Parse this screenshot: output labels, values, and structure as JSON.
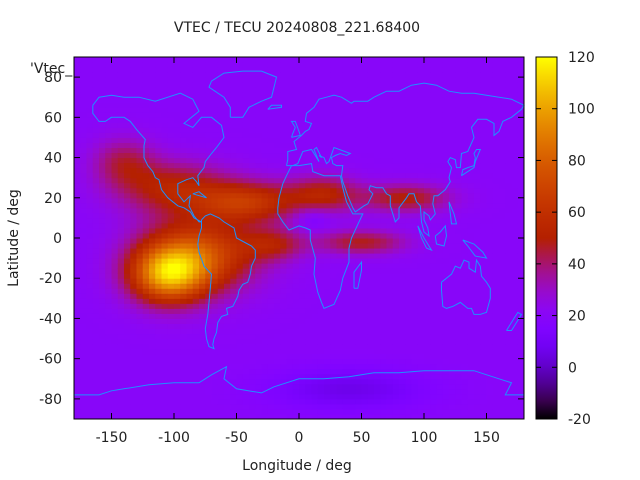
{
  "chart_data": {
    "type": "heatmap",
    "title": "VTEC / TECU 20240808_221.68400",
    "xlabel": "Longitude / deg",
    "ylabel": "Latitude / deg",
    "xlim": [
      -180,
      180
    ],
    "ylim": [
      -90,
      90
    ],
    "x_ticks": [
      -150,
      -100,
      -50,
      0,
      50,
      100,
      150
    ],
    "y_ticks": [
      -80,
      -60,
      -40,
      -20,
      0,
      20,
      40,
      60,
      80
    ],
    "x_tick_labels": [
      "-150",
      "-100",
      "-50",
      "0",
      "50",
      "100",
      "150"
    ],
    "y_tick_labels": [
      "-80",
      "-60",
      "-40",
      "-20",
      "0",
      "20",
      "40",
      "60",
      "80"
    ],
    "legend_entry": "'Vtec_",
    "colorbar": {
      "min": -20,
      "max": 120,
      "ticks": [
        -20,
        0,
        20,
        40,
        60,
        80,
        100,
        120
      ],
      "tick_labels": [
        "-20",
        "0",
        "20",
        "40",
        "60",
        "80",
        "100",
        "120"
      ],
      "palette": "gnuplot (black-purple-red-orange-yellow)"
    },
    "background_level": 20,
    "features": [
      {
        "lon": -100,
        "lat": 25,
        "sx": 45,
        "sy": 13,
        "amp": 32
      },
      {
        "lon": -105,
        "lat": -18,
        "sx": 30,
        "sy": 14,
        "amp": 70
      },
      {
        "lon": -80,
        "lat": -8,
        "sx": 45,
        "sy": 18,
        "amp": 52
      },
      {
        "lon": -40,
        "lat": 18,
        "sx": 40,
        "sy": 10,
        "amp": 40
      },
      {
        "lon": 20,
        "lat": 22,
        "sx": 28,
        "sy": 9,
        "amp": 30
      },
      {
        "lon": 85,
        "lat": 20,
        "sx": 35,
        "sy": 7,
        "amp": 30
      },
      {
        "lon": 50,
        "lat": -2,
        "sx": 35,
        "sy": 6,
        "amp": 28
      },
      {
        "lon": -20,
        "lat": -3,
        "sx": 25,
        "sy": 8,
        "amp": 25
      },
      {
        "lon": -140,
        "lat": 38,
        "sx": 25,
        "sy": 12,
        "amp": 22
      },
      {
        "lon": 10,
        "lat": 10,
        "sx": 15,
        "sy": 6,
        "amp": -10
      },
      {
        "lon": 40,
        "lat": -75,
        "sx": 60,
        "sy": 10,
        "amp": -14
      }
    ],
    "grid": false
  }
}
